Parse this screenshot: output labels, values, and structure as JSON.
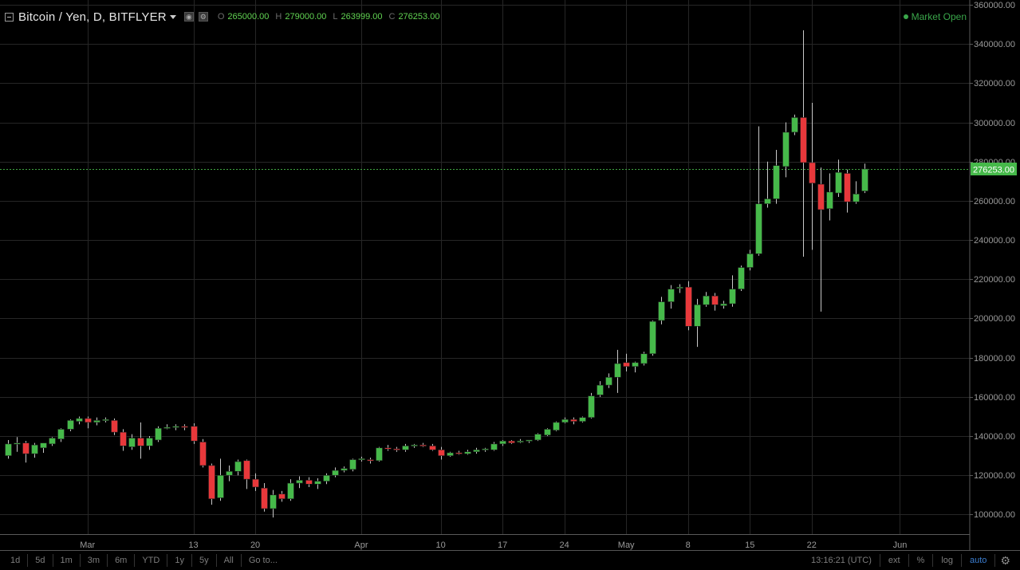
{
  "header": {
    "symbol": "Bitcoin / Yen, D, BITFLYER",
    "o_label": "O",
    "o_value": "265000.00",
    "h_label": "H",
    "h_value": "279000.00",
    "l_label": "L",
    "l_value": "263999.00",
    "c_label": "C",
    "c_value": "276253.00",
    "market_status": "Market Open"
  },
  "colors": {
    "up": "#46b94a",
    "down": "#e8383b",
    "accent": "#3b7dcf",
    "status": "#3aa64a"
  },
  "icons": [
    "collapse-icon",
    "eye-icon",
    "settings-icon",
    "gear-icon"
  ],
  "toolbar": {
    "timeframes": [
      "1d",
      "5d",
      "1m",
      "3m",
      "6m",
      "YTD",
      "1y",
      "5y",
      "All",
      "Go to..."
    ],
    "time": "13:16:21 (UTC)",
    "options": [
      "ext",
      "%",
      "log",
      "auto"
    ]
  },
  "chart_data": {
    "type": "candlestick",
    "ylim": [
      90000,
      360000
    ],
    "yticks": [
      100000,
      120000,
      140000,
      160000,
      180000,
      200000,
      220000,
      240000,
      260000,
      280000,
      300000,
      320000,
      340000,
      360000
    ],
    "ytick_labels": [
      "100000.00",
      "120000.00",
      "140000.00",
      "160000.00",
      "180000.00",
      "200000.00",
      "220000.00",
      "240000.00",
      "260000.00",
      "280000.00",
      "300000.00",
      "320000.00",
      "340000.00",
      "360000.00"
    ],
    "x_start": "2017-02-20",
    "x_end": "2017-06-08",
    "xticks": [
      {
        "date": "2017-03-01",
        "label": "Mar"
      },
      {
        "date": "2017-03-13",
        "label": "13"
      },
      {
        "date": "2017-03-20",
        "label": "20"
      },
      {
        "date": "2017-04-01",
        "label": "Apr"
      },
      {
        "date": "2017-04-10",
        "label": "10"
      },
      {
        "date": "2017-04-17",
        "label": "17"
      },
      {
        "date": "2017-04-24",
        "label": "24"
      },
      {
        "date": "2017-05-01",
        "label": "May"
      },
      {
        "date": "2017-05-08",
        "label": "8"
      },
      {
        "date": "2017-05-15",
        "label": "15"
      },
      {
        "date": "2017-05-22",
        "label": "22"
      },
      {
        "date": "2017-06-01",
        "label": "Jun"
      }
    ],
    "last_price": 276253,
    "last_price_label": "276253.00",
    "grid": true,
    "candles": [
      {
        "d": "2017-02-20",
        "o": 130000,
        "h": 138000,
        "l": 128500,
        "c": 136000
      },
      {
        "d": "2017-02-21",
        "o": 136000,
        "h": 139500,
        "l": 132000,
        "c": 136500
      },
      {
        "d": "2017-02-22",
        "o": 136500,
        "h": 137500,
        "l": 126500,
        "c": 131000
      },
      {
        "d": "2017-02-23",
        "o": 131000,
        "h": 136500,
        "l": 129000,
        "c": 135500
      },
      {
        "d": "2017-02-24",
        "o": 134000,
        "h": 136500,
        "l": 131500,
        "c": 136500
      },
      {
        "d": "2017-02-25",
        "o": 136000,
        "h": 139500,
        "l": 135000,
        "c": 139000
      },
      {
        "d": "2017-02-26",
        "o": 138500,
        "h": 144000,
        "l": 137000,
        "c": 143500
      },
      {
        "d": "2017-02-27",
        "o": 143500,
        "h": 148500,
        "l": 142500,
        "c": 148000
      },
      {
        "d": "2017-02-28",
        "o": 147500,
        "h": 150000,
        "l": 146000,
        "c": 149000
      },
      {
        "d": "2017-03-01",
        "o": 149000,
        "h": 150000,
        "l": 144000,
        "c": 147000
      },
      {
        "d": "2017-03-02",
        "o": 147000,
        "h": 149500,
        "l": 145500,
        "c": 148000
      },
      {
        "d": "2017-03-03",
        "o": 148000,
        "h": 149500,
        "l": 147000,
        "c": 148500
      },
      {
        "d": "2017-03-04",
        "o": 148000,
        "h": 149000,
        "l": 140500,
        "c": 142000
      },
      {
        "d": "2017-03-05",
        "o": 142000,
        "h": 143500,
        "l": 132500,
        "c": 135000
      },
      {
        "d": "2017-03-06",
        "o": 134500,
        "h": 141000,
        "l": 133000,
        "c": 139000
      },
      {
        "d": "2017-03-07",
        "o": 139000,
        "h": 147000,
        "l": 128500,
        "c": 135000
      },
      {
        "d": "2017-03-08",
        "o": 135000,
        "h": 140000,
        "l": 133000,
        "c": 139000
      },
      {
        "d": "2017-03-09",
        "o": 138000,
        "h": 145000,
        "l": 137000,
        "c": 144000
      },
      {
        "d": "2017-03-10",
        "o": 144000,
        "h": 146000,
        "l": 143500,
        "c": 144500
      },
      {
        "d": "2017-03-11",
        "o": 144500,
        "h": 146000,
        "l": 143000,
        "c": 145000
      },
      {
        "d": "2017-03-12",
        "o": 145000,
        "h": 146000,
        "l": 143000,
        "c": 144500
      },
      {
        "d": "2017-03-13",
        "o": 145000,
        "h": 146500,
        "l": 136000,
        "c": 137500
      },
      {
        "d": "2017-03-14",
        "o": 137000,
        "h": 138500,
        "l": 124000,
        "c": 125000
      },
      {
        "d": "2017-03-15",
        "o": 125000,
        "h": 126000,
        "l": 105000,
        "c": 108000
      },
      {
        "d": "2017-03-16",
        "o": 108500,
        "h": 128500,
        "l": 107000,
        "c": 120000
      },
      {
        "d": "2017-03-17",
        "o": 120000,
        "h": 125000,
        "l": 117000,
        "c": 122000
      },
      {
        "d": "2017-03-18",
        "o": 122000,
        "h": 128000,
        "l": 120000,
        "c": 127000
      },
      {
        "d": "2017-03-19",
        "o": 127500,
        "h": 128000,
        "l": 113000,
        "c": 118000
      },
      {
        "d": "2017-03-20",
        "o": 118000,
        "h": 121000,
        "l": 112000,
        "c": 114000
      },
      {
        "d": "2017-03-21",
        "o": 113500,
        "h": 116000,
        "l": 101500,
        "c": 103000
      },
      {
        "d": "2017-03-22",
        "o": 103000,
        "h": 112500,
        "l": 98500,
        "c": 110000
      },
      {
        "d": "2017-03-23",
        "o": 110500,
        "h": 112000,
        "l": 106500,
        "c": 108000
      },
      {
        "d": "2017-03-24",
        "o": 108000,
        "h": 118000,
        "l": 107000,
        "c": 116000
      },
      {
        "d": "2017-03-25",
        "o": 116000,
        "h": 119500,
        "l": 113500,
        "c": 117500
      },
      {
        "d": "2017-03-26",
        "o": 117500,
        "h": 119000,
        "l": 114000,
        "c": 115500
      },
      {
        "d": "2017-03-27",
        "o": 115500,
        "h": 118500,
        "l": 113000,
        "c": 117000
      },
      {
        "d": "2017-03-28",
        "o": 117000,
        "h": 121000,
        "l": 115500,
        "c": 120000
      },
      {
        "d": "2017-03-29",
        "o": 120000,
        "h": 124000,
        "l": 119000,
        "c": 122500
      },
      {
        "d": "2017-03-30",
        "o": 122500,
        "h": 124500,
        "l": 121500,
        "c": 123500
      },
      {
        "d": "2017-03-31",
        "o": 123000,
        "h": 128500,
        "l": 122000,
        "c": 128000
      },
      {
        "d": "2017-04-01",
        "o": 128000,
        "h": 129500,
        "l": 127000,
        "c": 128500
      },
      {
        "d": "2017-04-02",
        "o": 128000,
        "h": 129000,
        "l": 126000,
        "c": 127500
      },
      {
        "d": "2017-04-03",
        "o": 127500,
        "h": 134500,
        "l": 127000,
        "c": 134000
      },
      {
        "d": "2017-04-04",
        "o": 134000,
        "h": 135500,
        "l": 132500,
        "c": 133500
      },
      {
        "d": "2017-04-05",
        "o": 133500,
        "h": 134500,
        "l": 132000,
        "c": 133000
      },
      {
        "d": "2017-04-06",
        "o": 133000,
        "h": 136000,
        "l": 132000,
        "c": 135000
      },
      {
        "d": "2017-04-07",
        "o": 135000,
        "h": 136000,
        "l": 134000,
        "c": 135500
      },
      {
        "d": "2017-04-08",
        "o": 135500,
        "h": 136500,
        "l": 134500,
        "c": 135000
      },
      {
        "d": "2017-04-09",
        "o": 135000,
        "h": 136000,
        "l": 132500,
        "c": 133000
      },
      {
        "d": "2017-04-10",
        "o": 133000,
        "h": 134500,
        "l": 128000,
        "c": 130000
      },
      {
        "d": "2017-04-11",
        "o": 130000,
        "h": 132000,
        "l": 129500,
        "c": 131500
      },
      {
        "d": "2017-04-12",
        "o": 131500,
        "h": 132500,
        "l": 130500,
        "c": 131000
      },
      {
        "d": "2017-04-13",
        "o": 131000,
        "h": 133000,
        "l": 130500,
        "c": 132000
      },
      {
        "d": "2017-04-14",
        "o": 132000,
        "h": 134000,
        "l": 131000,
        "c": 133000
      },
      {
        "d": "2017-04-15",
        "o": 133000,
        "h": 134000,
        "l": 132000,
        "c": 133500
      },
      {
        "d": "2017-04-16",
        "o": 133000,
        "h": 137000,
        "l": 132500,
        "c": 136000
      },
      {
        "d": "2017-04-17",
        "o": 136000,
        "h": 138000,
        "l": 135000,
        "c": 137500
      },
      {
        "d": "2017-04-18",
        "o": 137500,
        "h": 138000,
        "l": 136000,
        "c": 136500
      },
      {
        "d": "2017-04-19",
        "o": 137000,
        "h": 138500,
        "l": 136500,
        "c": 137500
      },
      {
        "d": "2017-04-20",
        "o": 137500,
        "h": 138000,
        "l": 136500,
        "c": 138000
      },
      {
        "d": "2017-04-21",
        "o": 138000,
        "h": 141500,
        "l": 137500,
        "c": 141000
      },
      {
        "d": "2017-04-22",
        "o": 140500,
        "h": 144000,
        "l": 140000,
        "c": 143500
      },
      {
        "d": "2017-04-23",
        "o": 143000,
        "h": 147500,
        "l": 142500,
        "c": 147000
      },
      {
        "d": "2017-04-24",
        "o": 147000,
        "h": 149500,
        "l": 146500,
        "c": 148500
      },
      {
        "d": "2017-04-25",
        "o": 148500,
        "h": 149500,
        "l": 146000,
        "c": 147500
      },
      {
        "d": "2017-04-26",
        "o": 147500,
        "h": 150000,
        "l": 147000,
        "c": 149500
      },
      {
        "d": "2017-04-27",
        "o": 149500,
        "h": 162000,
        "l": 149000,
        "c": 160500
      },
      {
        "d": "2017-04-28",
        "o": 161000,
        "h": 168000,
        "l": 160000,
        "c": 166000
      },
      {
        "d": "2017-04-29",
        "o": 166000,
        "h": 172000,
        "l": 164500,
        "c": 170000
      },
      {
        "d": "2017-04-30",
        "o": 170000,
        "h": 184000,
        "l": 162000,
        "c": 177000
      },
      {
        "d": "2017-05-01",
        "o": 177500,
        "h": 182000,
        "l": 173000,
        "c": 175500
      },
      {
        "d": "2017-05-02",
        "o": 175500,
        "h": 178000,
        "l": 172500,
        "c": 177500
      },
      {
        "d": "2017-05-03",
        "o": 177000,
        "h": 183000,
        "l": 176000,
        "c": 182000
      },
      {
        "d": "2017-05-04",
        "o": 182000,
        "h": 199000,
        "l": 181000,
        "c": 198500
      },
      {
        "d": "2017-05-05",
        "o": 199000,
        "h": 211000,
        "l": 197000,
        "c": 208500
      },
      {
        "d": "2017-05-06",
        "o": 208500,
        "h": 217000,
        "l": 205000,
        "c": 215000
      },
      {
        "d": "2017-05-07",
        "o": 215500,
        "h": 217500,
        "l": 213000,
        "c": 216000
      },
      {
        "d": "2017-05-08",
        "o": 216000,
        "h": 219000,
        "l": 194000,
        "c": 196000
      },
      {
        "d": "2017-05-09",
        "o": 196000,
        "h": 210000,
        "l": 185500,
        "c": 207000
      },
      {
        "d": "2017-05-10",
        "o": 207000,
        "h": 213500,
        "l": 206000,
        "c": 211500
      },
      {
        "d": "2017-05-11",
        "o": 211500,
        "h": 213000,
        "l": 204000,
        "c": 207000
      },
      {
        "d": "2017-05-12",
        "o": 206500,
        "h": 209000,
        "l": 205000,
        "c": 207500
      },
      {
        "d": "2017-05-13",
        "o": 207500,
        "h": 222000,
        "l": 206000,
        "c": 215000
      },
      {
        "d": "2017-05-14",
        "o": 215000,
        "h": 227000,
        "l": 214000,
        "c": 226000
      },
      {
        "d": "2017-05-15",
        "o": 226000,
        "h": 235000,
        "l": 224500,
        "c": 233000
      },
      {
        "d": "2017-05-16",
        "o": 233000,
        "h": 298000,
        "l": 232000,
        "c": 258500
      },
      {
        "d": "2017-05-17",
        "o": 258500,
        "h": 280000,
        "l": 256500,
        "c": 261000
      },
      {
        "d": "2017-05-18",
        "o": 261000,
        "h": 286000,
        "l": 258500,
        "c": 278000
      },
      {
        "d": "2017-05-19",
        "o": 277500,
        "h": 300000,
        "l": 272000,
        "c": 295000
      },
      {
        "d": "2017-05-20",
        "o": 295000,
        "h": 304000,
        "l": 293500,
        "c": 302500
      },
      {
        "d": "2017-05-21",
        "o": 302500,
        "h": 347000,
        "l": 231500,
        "c": 279500
      },
      {
        "d": "2017-05-22",
        "o": 279500,
        "h": 310000,
        "l": 235000,
        "c": 269000
      },
      {
        "d": "2017-05-23",
        "o": 268500,
        "h": 277000,
        "l": 203500,
        "c": 255500
      },
      {
        "d": "2017-05-24",
        "o": 256000,
        "h": 274000,
        "l": 250000,
        "c": 264500
      },
      {
        "d": "2017-05-25",
        "o": 264000,
        "h": 281000,
        "l": 262000,
        "c": 274500
      },
      {
        "d": "2017-05-26",
        "o": 274000,
        "h": 276000,
        "l": 254000,
        "c": 259500
      },
      {
        "d": "2017-05-27",
        "o": 259500,
        "h": 270000,
        "l": 258500,
        "c": 263500
      },
      {
        "d": "2017-05-28",
        "o": 265000,
        "h": 279000,
        "l": 263999,
        "c": 276253
      }
    ]
  }
}
